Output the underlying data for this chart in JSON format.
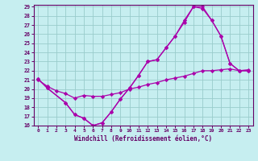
{
  "xlabel": "Windchill (Refroidissement éolien,°C)",
  "bg_color": "#c6eef0",
  "line_color": "#aa00aa",
  "grid_color": "#99cccc",
  "axis_color": "#660066",
  "xlim": [
    -0.5,
    23.5
  ],
  "ylim": [
    16,
    29.2
  ],
  "xticks": [
    0,
    1,
    2,
    3,
    4,
    5,
    6,
    7,
    8,
    9,
    10,
    11,
    12,
    13,
    14,
    15,
    16,
    17,
    18,
    19,
    20,
    21,
    22,
    23
  ],
  "yticks": [
    16,
    17,
    18,
    19,
    20,
    21,
    22,
    23,
    24,
    25,
    26,
    27,
    28,
    29
  ],
  "line1_x": [
    0,
    1,
    3,
    4,
    5,
    6,
    7,
    8,
    9,
    10,
    11,
    12,
    13,
    14,
    15,
    16,
    17,
    18,
    19,
    20,
    21,
    22,
    23
  ],
  "line1_y": [
    21.1,
    20.1,
    18.5,
    17.2,
    16.8,
    16.0,
    16.3,
    17.5,
    18.9,
    20.1,
    21.5,
    23.0,
    23.2,
    24.5,
    25.8,
    27.3,
    29.0,
    29.0,
    27.5,
    25.8,
    22.8,
    22.0,
    22.0
  ],
  "line2_x": [
    0,
    1,
    3,
    4,
    5,
    6,
    7,
    8,
    9,
    10,
    11,
    12,
    13,
    14,
    15,
    16,
    17,
    18,
    19,
    20,
    21,
    22,
    23
  ],
  "line2_y": [
    21.1,
    20.1,
    18.5,
    17.2,
    16.8,
    16.0,
    16.3,
    17.5,
    18.9,
    20.1,
    21.5,
    23.0,
    23.2,
    24.5,
    25.8,
    27.5,
    29.0,
    28.8,
    27.5,
    25.8,
    22.8,
    22.0,
    22.0
  ],
  "line3_x": [
    0,
    1,
    2,
    3,
    4,
    5,
    6,
    7,
    8,
    9,
    10,
    11,
    12,
    13,
    14,
    15,
    16,
    17,
    18,
    19,
    20,
    21,
    22,
    23
  ],
  "line3_y": [
    21.0,
    20.3,
    19.8,
    19.5,
    19.0,
    19.3,
    19.2,
    19.2,
    19.4,
    19.6,
    20.0,
    20.2,
    20.5,
    20.7,
    21.0,
    21.2,
    21.4,
    21.7,
    22.0,
    22.0,
    22.1,
    22.2,
    22.0,
    22.1
  ]
}
